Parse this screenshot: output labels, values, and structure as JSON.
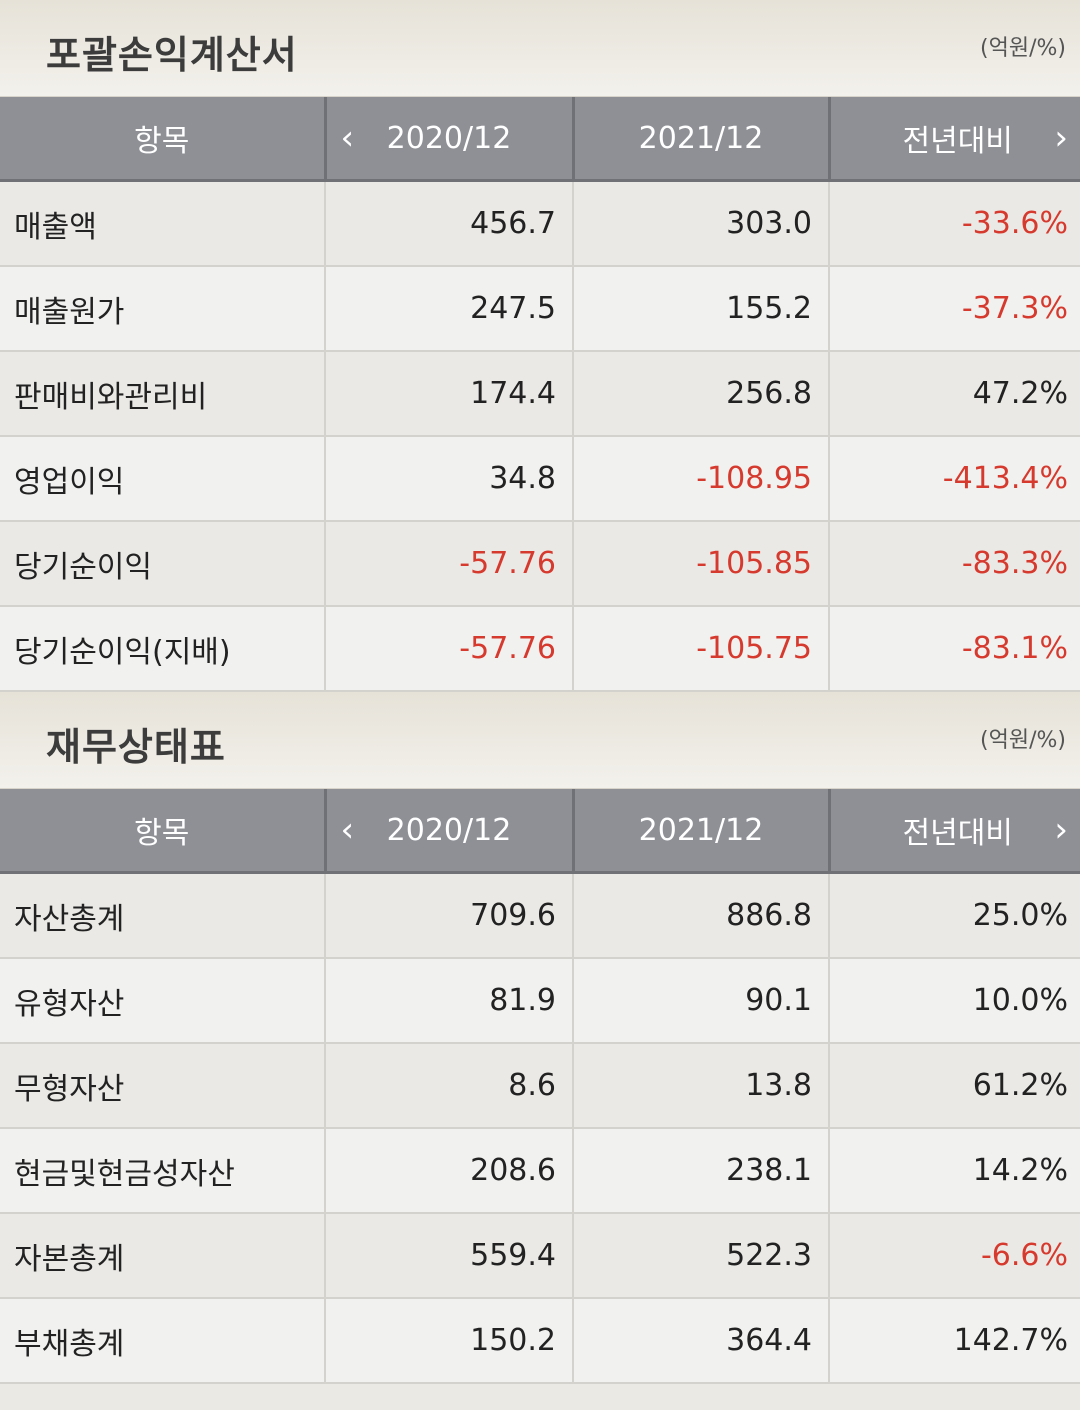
{
  "income": {
    "title": "포괄손익계산서",
    "unit": "(억원/%)",
    "headers": [
      "항목",
      "2020/12",
      "2021/12",
      "전년대비"
    ],
    "rows": [
      {
        "label": "매출액",
        "v2020": "456.7",
        "v2021": "303.0",
        "yoy": "-33.6%"
      },
      {
        "label": "매출원가",
        "v2020": "247.5",
        "v2021": "155.2",
        "yoy": "-37.3%"
      },
      {
        "label": "판매비와관리비",
        "v2020": "174.4",
        "v2021": "256.8",
        "yoy": "47.2%"
      },
      {
        "label": "영업이익",
        "v2020": "34.8",
        "v2021": "-108.95",
        "yoy": "-413.4%"
      },
      {
        "label": "당기순이익",
        "v2020": "-57.76",
        "v2021": "-105.85",
        "yoy": "-83.3%"
      },
      {
        "label": "당기순이익(지배)",
        "v2020": "-57.76",
        "v2021": "-105.75",
        "yoy": "-83.1%"
      }
    ]
  },
  "balance": {
    "title": "재무상태표",
    "unit": "(억원/%)",
    "headers": [
      "항목",
      "2020/12",
      "2021/12",
      "전년대비"
    ],
    "rows": [
      {
        "label": "자산총계",
        "v2020": "709.6",
        "v2021": "886.8",
        "yoy": "25.0%"
      },
      {
        "label": "유형자산",
        "v2020": "81.9",
        "v2021": "90.1",
        "yoy": "10.0%"
      },
      {
        "label": "무형자산",
        "v2020": "8.6",
        "v2021": "13.8",
        "yoy": "61.2%"
      },
      {
        "label": "현금및현금성자산",
        "v2020": "208.6",
        "v2021": "238.1",
        "yoy": "14.2%"
      },
      {
        "label": "자본총계",
        "v2020": "559.4",
        "v2021": "522.3",
        "yoy": "-6.6%"
      },
      {
        "label": "부채총계",
        "v2020": "150.2",
        "v2021": "364.4",
        "yoy": "142.7%"
      }
    ]
  },
  "icons": {
    "prev": "chevron-left-icon",
    "next": "chevron-right-icon"
  },
  "colors": {
    "negative": "#d63a2e",
    "header_bg": "#8e9096"
  }
}
